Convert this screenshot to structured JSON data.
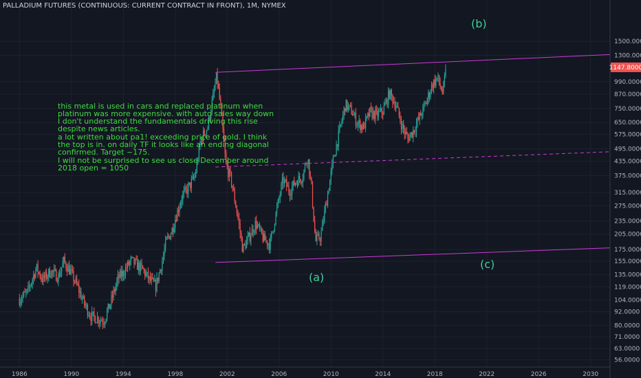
{
  "title": "PALLADIUM FUTURES (CONTINUOUS: CURRENT CONTRACT IN FRONT), 1M, NYMEX",
  "notes": [
    "this metal is used in cars and replaced platinum when platinum was more expensive.  with auto sales way down I don't understand the fundamentals driving this rise despite news articles.",
    "a lot written about pa1! exceeding price of gold.  I think the top is in.  on daily TF it looks like an ending diagonal confirmed.  Target ~175.",
    "I will not be surprised to see us close December around 2018 open = 1050"
  ],
  "wave_labels": {
    "a": "(a)",
    "b": "(b)",
    "c": "(c)"
  },
  "colors": {
    "background": "#131722",
    "up_candle": "#26a69a",
    "down_candle": "#ef5350",
    "channel": "#cc3bd6",
    "note_text": "#3fdc3f",
    "wave_text": "#3fcf9a",
    "last_price_tag": "#ef5350"
  },
  "chart_data": {
    "type": "candlestick",
    "interval": "1M",
    "y_scale": "log",
    "ylim": [
      52,
      2300
    ],
    "xlim": [
      1984.5,
      2031.5
    ],
    "grid": true,
    "last_price": "1147.8000",
    "y_ticks": [
      "2300.0000",
      "1500.0000",
      "1300.0000",
      "990.0000",
      "870.0000",
      "750.0000",
      "650.0000",
      "575.0000",
      "495.0000",
      "435.0000",
      "375.0000",
      "315.0000",
      "275.0000",
      "235.0000",
      "205.0000",
      "175.0000",
      "155.0000",
      "135.0000",
      "119.0000",
      "104.0000",
      "92.0000",
      "80.0000",
      "71.0000",
      "63.0000",
      "56.0000"
    ],
    "x_ticks": [
      "1986",
      "1990",
      "1994",
      "1998",
      "2002",
      "2006",
      "2010",
      "2014",
      "2018",
      "2022",
      "2026",
      "2030"
    ],
    "price_path": [
      [
        1986.0,
        105
      ],
      [
        1986.6,
        112
      ],
      [
        1987.3,
        145
      ],
      [
        1987.8,
        128
      ],
      [
        1988.4,
        140
      ],
      [
        1989.0,
        132
      ],
      [
        1989.4,
        155
      ],
      [
        1989.9,
        140
      ],
      [
        1990.5,
        118
      ],
      [
        1991.0,
        100
      ],
      [
        1991.5,
        88
      ],
      [
        1992.0,
        86
      ],
      [
        1992.5,
        84
      ],
      [
        1993.0,
        100
      ],
      [
        1993.6,
        130
      ],
      [
        1994.0,
        138
      ],
      [
        1994.6,
        156
      ],
      [
        1995.0,
        150
      ],
      [
        1995.5,
        142
      ],
      [
        1996.0,
        128
      ],
      [
        1996.5,
        120
      ],
      [
        1997.0,
        155
      ],
      [
        1997.3,
        190
      ],
      [
        1997.7,
        210
      ],
      [
        1998.0,
        240
      ],
      [
        1998.5,
        300
      ],
      [
        1999.0,
        330
      ],
      [
        1999.5,
        370
      ],
      [
        2000.0,
        550
      ],
      [
        2000.5,
        620
      ],
      [
        2001.0,
        900
      ],
      [
        2001.2,
        1050
      ],
      [
        2001.5,
        750
      ],
      [
        2001.9,
        420
      ],
      [
        2002.3,
        360
      ],
      [
        2002.8,
        250
      ],
      [
        2003.2,
        175
      ],
      [
        2003.8,
        205
      ],
      [
        2004.2,
        230
      ],
      [
        2004.8,
        195
      ],
      [
        2005.3,
        185
      ],
      [
        2005.8,
        260
      ],
      [
        2006.3,
        360
      ],
      [
        2006.8,
        320
      ],
      [
        2007.3,
        355
      ],
      [
        2007.8,
        370
      ],
      [
        2008.2,
        460
      ],
      [
        2008.5,
        330
      ],
      [
        2008.8,
        190
      ],
      [
        2009.2,
        200
      ],
      [
        2009.7,
        300
      ],
      [
        2010.2,
        450
      ],
      [
        2010.7,
        610
      ],
      [
        2011.1,
        780
      ],
      [
        2011.6,
        730
      ],
      [
        2012.0,
        650
      ],
      [
        2012.5,
        620
      ],
      [
        2013.0,
        720
      ],
      [
        2013.5,
        700
      ],
      [
        2014.0,
        730
      ],
      [
        2014.5,
        880
      ],
      [
        2015.0,
        780
      ],
      [
        2015.5,
        620
      ],
      [
        2015.9,
        550
      ],
      [
        2016.3,
        590
      ],
      [
        2016.8,
        680
      ],
      [
        2017.3,
        790
      ],
      [
        2017.8,
        960
      ],
      [
        2018.2,
        1030
      ],
      [
        2018.6,
        880
      ],
      [
        2018.9,
        1148
      ]
    ],
    "annotations": [
      {
        "label": "(a)",
        "x": 2002.7,
        "y": 145
      },
      {
        "label": "(b)",
        "x": 2019.8,
        "y": 1380
      },
      {
        "label": "(c)",
        "x": 2021.8,
        "y": 156
      }
    ],
    "channel_lines": [
      {
        "name": "upper-channel",
        "points": [
          [
            2001.1,
            1090
          ],
          [
            2031.5,
            1310
          ]
        ],
        "style": "solid"
      },
      {
        "name": "lower-channel",
        "points": [
          [
            2001.1,
            153
          ],
          [
            2031.5,
            178
          ]
        ],
        "style": "solid"
      },
      {
        "name": "mid-channel",
        "points": [
          [
            2001.1,
            410
          ],
          [
            2031.5,
            480
          ]
        ],
        "style": "dashed"
      }
    ]
  }
}
